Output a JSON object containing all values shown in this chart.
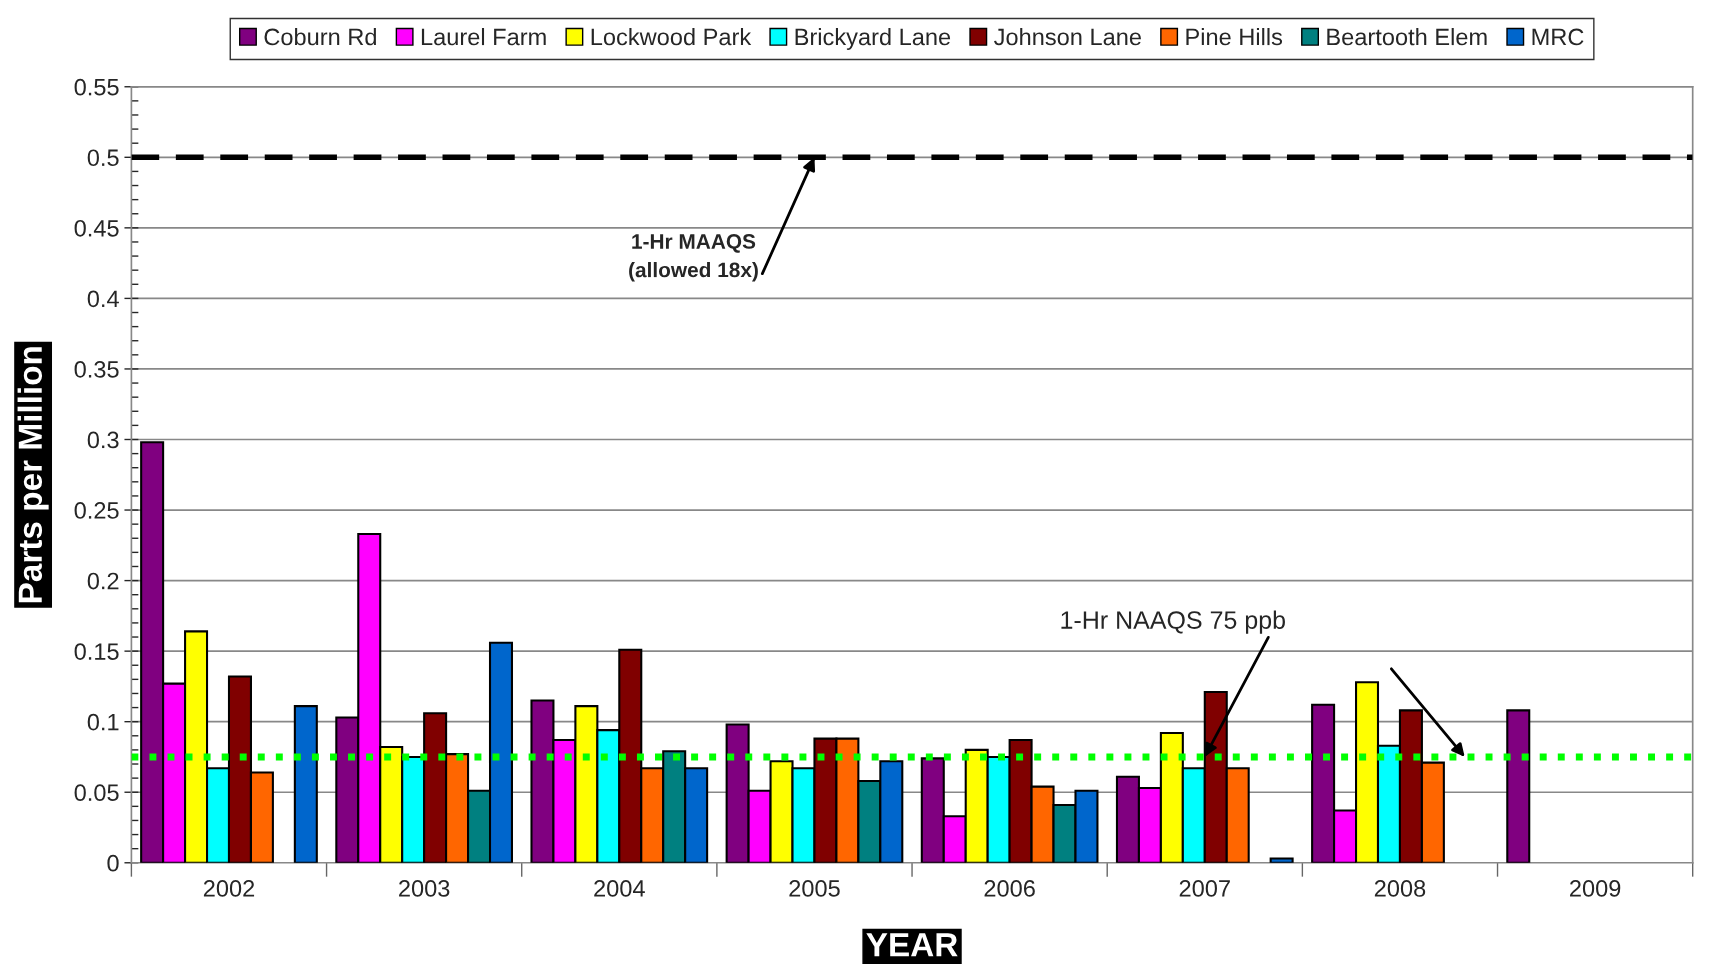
{
  "chart_data": {
    "type": "bar",
    "categories": [
      "2002",
      "2003",
      "2004",
      "2005",
      "2006",
      "2007",
      "2008",
      "2009"
    ],
    "series": [
      {
        "name": "Coburn Rd",
        "color": "#800080",
        "values": [
          0.298,
          0.103,
          0.115,
          0.098,
          0.074,
          0.061,
          0.112,
          0.108
        ]
      },
      {
        "name": "Laurel Farm",
        "color": "#ff00ff",
        "values": [
          0.127,
          0.233,
          0.087,
          0.051,
          0.033,
          0.053,
          0.037,
          null
        ]
      },
      {
        "name": "Lockwood Park",
        "color": "#ffff00",
        "values": [
          0.164,
          0.082,
          0.111,
          0.072,
          0.08,
          0.092,
          0.128,
          null
        ]
      },
      {
        "name": "Brickyard Lane",
        "color": "#00ffff",
        "values": [
          0.067,
          0.075,
          0.094,
          0.067,
          0.075,
          0.067,
          0.083,
          null
        ]
      },
      {
        "name": "Johnson Lane",
        "color": "#800000",
        "values": [
          0.132,
          0.106,
          0.151,
          0.088,
          0.087,
          0.121,
          0.108,
          null
        ]
      },
      {
        "name": "Pine Hills",
        "color": "#ff6600",
        "values": [
          0.064,
          0.077,
          0.067,
          0.088,
          0.054,
          0.067,
          0.071,
          null
        ]
      },
      {
        "name": "Beartooth Elem",
        "color": "#008080",
        "values": [
          null,
          0.051,
          0.079,
          0.058,
          0.041,
          null,
          null,
          null
        ]
      },
      {
        "name": "MRC",
        "color": "#0066cc",
        "values": [
          0.111,
          0.156,
          0.067,
          0.072,
          0.051,
          0.003,
          null,
          null
        ]
      }
    ],
    "xlabel": "YEAR",
    "ylabel": "Parts per Million",
    "ylim": [
      0,
      0.55
    ],
    "yticks": [
      0,
      0.05,
      0.1,
      0.15,
      0.2,
      0.25,
      0.3,
      0.35,
      0.4,
      0.45,
      0.5,
      0.55
    ],
    "grid": "y",
    "legend": "top",
    "ref_lines": [
      {
        "axis": "y",
        "value": 0.5,
        "color": "#000000",
        "line_style": "dashed"
      },
      {
        "axis": "y",
        "value": 0.075,
        "color": "#00ff00",
        "line_style": "dotted"
      }
    ],
    "annotations": [
      {
        "text": "1-Hr MAAQS\n(allowed 18x)",
        "x": "2005",
        "y": 0.5
      },
      {
        "text": "1-Hr NAAQS 75 ppb",
        "x": "2007",
        "y": 0.075
      }
    ]
  }
}
